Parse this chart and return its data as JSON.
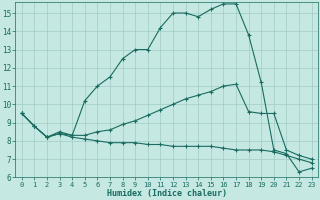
{
  "title": "",
  "xlabel": "Humidex (Indice chaleur)",
  "xlim": [
    -0.5,
    23.5
  ],
  "ylim": [
    6,
    15.6
  ],
  "yticks": [
    6,
    7,
    8,
    9,
    10,
    11,
    12,
    13,
    14,
    15
  ],
  "xticks": [
    0,
    1,
    2,
    3,
    4,
    5,
    6,
    7,
    8,
    9,
    10,
    11,
    12,
    13,
    14,
    15,
    16,
    17,
    18,
    19,
    20,
    21,
    22,
    23
  ],
  "bg_color": "#c5e8e3",
  "line_color": "#1a6b60",
  "grid_color": "#a0ccc5",
  "line1_y": [
    9.5,
    8.8,
    8.2,
    8.5,
    8.3,
    10.2,
    11.0,
    11.5,
    12.5,
    13.0,
    13.0,
    14.2,
    15.0,
    15.0,
    14.8,
    15.2,
    15.5,
    15.5,
    13.8,
    11.2,
    7.5,
    7.3,
    6.3,
    6.5
  ],
  "line2_y": [
    9.5,
    8.8,
    8.2,
    8.4,
    8.3,
    8.3,
    8.5,
    8.6,
    8.9,
    9.1,
    9.4,
    9.7,
    10.0,
    10.3,
    10.5,
    10.7,
    11.0,
    11.1,
    9.6,
    9.5,
    9.5,
    7.5,
    7.2,
    7.0
  ],
  "line3_y": [
    9.5,
    8.8,
    8.2,
    8.4,
    8.2,
    8.1,
    8.0,
    7.9,
    7.9,
    7.9,
    7.8,
    7.8,
    7.7,
    7.7,
    7.7,
    7.7,
    7.6,
    7.5,
    7.5,
    7.5,
    7.4,
    7.2,
    7.0,
    6.8
  ]
}
